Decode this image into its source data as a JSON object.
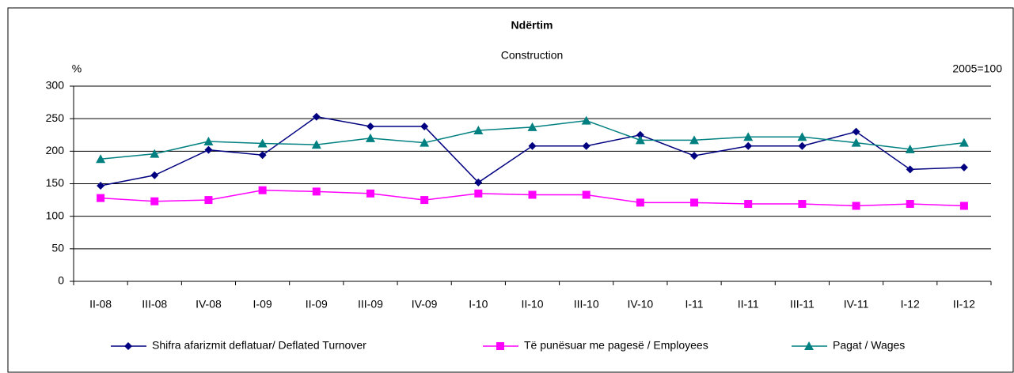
{
  "chart_data": {
    "type": "line",
    "title": "Ndërtim",
    "subtitle": "Construction",
    "y_label": "%",
    "annotation": "2005=100",
    "categories": [
      "II-08",
      "III-08",
      "IV-08",
      "I-09",
      "II-09",
      "III-09",
      "IV-09",
      "I-10",
      "II-10",
      "III-10",
      "IV-10",
      "I-11",
      "II-11",
      "III-11",
      "IV-11",
      "I-12",
      "II-12"
    ],
    "series": [
      {
        "name": "Shifra afarizmit deflatuar/ Deflated Turnover",
        "color": "#000080",
        "marker": "diamond",
        "values": [
          147,
          163,
          202,
          194,
          253,
          238,
          238,
          152,
          208,
          208,
          225,
          193,
          208,
          208,
          230,
          172,
          175
        ]
      },
      {
        "name": "Të punësuar me pagesë / Employees",
        "color": "#ff00ff",
        "marker": "square",
        "values": [
          128,
          123,
          125,
          140,
          138,
          135,
          125,
          135,
          133,
          133,
          121,
          121,
          119,
          119,
          116,
          119,
          116
        ]
      },
      {
        "name": "Pagat / Wages",
        "color": "#008080",
        "marker": "triangle",
        "values": [
          188,
          196,
          215,
          212,
          210,
          220,
          213,
          232,
          237,
          247,
          217,
          217,
          222,
          222,
          213,
          203,
          213
        ]
      }
    ],
    "ylim": [
      0,
      300
    ],
    "yticks": [
      0,
      50,
      100,
      150,
      200,
      250,
      300
    ],
    "grid": true
  }
}
